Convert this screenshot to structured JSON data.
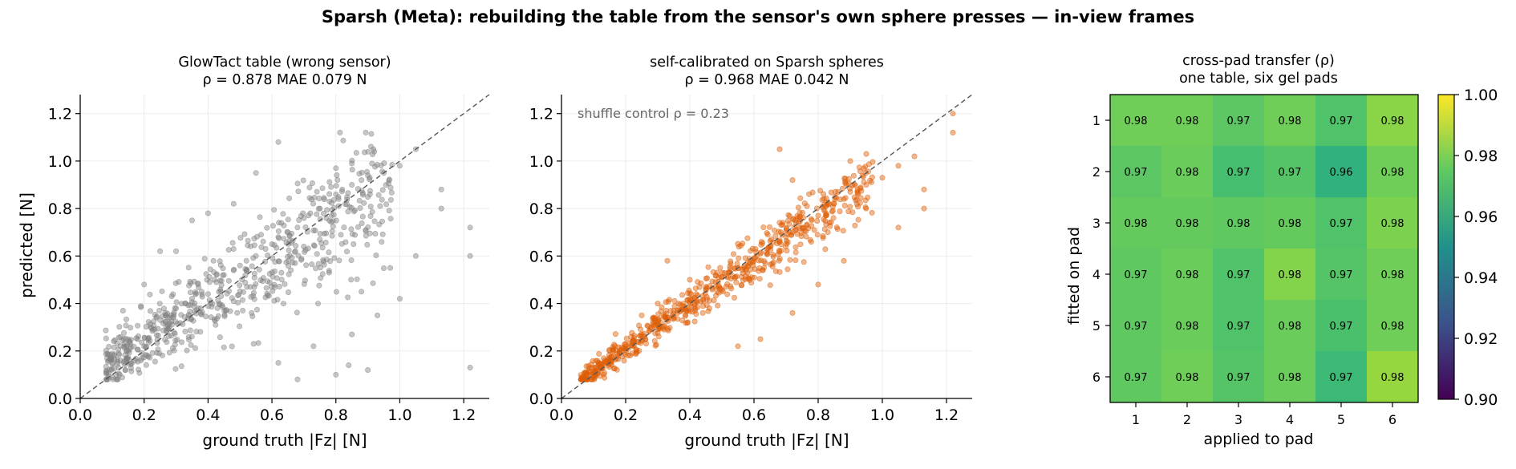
{
  "suptitle": "Sparsh (Meta): rebuilding the table from the sensor's own sphere presses — in-view frames",
  "colors": {
    "panel1_points": "#808080",
    "panel2_points": "#dd5e05",
    "diagonal": "#555555",
    "grid": "#ebebeb"
  },
  "chart_data": [
    {
      "type": "scatter",
      "title": "GlowTact table (wrong sensor)",
      "subtitle": "ρ = 0.878   MAE 0.079 N",
      "xlabel": "ground truth |Fz| [N]",
      "ylabel": "predicted [N]",
      "xlim": [
        0,
        1.28
      ],
      "ylim": [
        0,
        1.28
      ],
      "xticks": [
        "0.0",
        "0.2",
        "0.4",
        "0.6",
        "0.8",
        "1.0",
        "1.2"
      ],
      "yticks": [
        "0.0",
        "0.2",
        "0.4",
        "0.6",
        "0.8",
        "1.0",
        "1.2"
      ],
      "grid": true,
      "reference_line": "y = x",
      "stats": {
        "spearman_rho": 0.878,
        "mae_N": 0.079
      },
      "x_range": [
        0.08,
        1.23
      ],
      "points": [
        [
          0.12,
          0.13
        ],
        [
          0.15,
          0.2
        ],
        [
          0.18,
          0.25
        ],
        [
          0.2,
          0.22
        ],
        [
          0.22,
          0.3
        ],
        [
          0.25,
          0.33
        ],
        [
          0.28,
          0.34
        ],
        [
          0.3,
          0.38
        ],
        [
          0.33,
          0.4
        ],
        [
          0.35,
          0.42
        ],
        [
          0.38,
          0.45
        ],
        [
          0.4,
          0.44
        ],
        [
          0.42,
          0.5
        ],
        [
          0.45,
          0.52
        ],
        [
          0.48,
          0.54
        ],
        [
          0.5,
          0.56
        ],
        [
          0.52,
          0.58
        ],
        [
          0.55,
          0.6
        ],
        [
          0.58,
          0.63
        ],
        [
          0.6,
          0.65
        ],
        [
          0.62,
          0.68
        ],
        [
          0.65,
          0.7
        ],
        [
          0.68,
          0.72
        ],
        [
          0.7,
          0.76
        ],
        [
          0.72,
          0.78
        ],
        [
          0.75,
          0.8
        ],
        [
          0.78,
          0.83
        ],
        [
          0.8,
          0.86
        ],
        [
          0.82,
          0.88
        ],
        [
          0.85,
          0.9
        ],
        [
          0.88,
          0.92
        ],
        [
          0.9,
          0.94
        ],
        [
          0.95,
          0.95
        ],
        [
          1.0,
          0.98
        ],
        [
          1.05,
          1.05
        ],
        [
          0.62,
          1.08
        ],
        [
          0.55,
          0.95
        ],
        [
          0.8,
          0.97
        ],
        [
          0.92,
          1.04
        ],
        [
          0.85,
          0.99
        ],
        [
          0.62,
          0.15
        ],
        [
          0.68,
          0.08
        ],
        [
          0.8,
          0.1
        ],
        [
          0.84,
          0.14
        ],
        [
          0.9,
          0.12
        ],
        [
          0.73,
          0.22
        ],
        [
          0.85,
          0.27
        ],
        [
          0.93,
          0.35
        ],
        [
          1.0,
          0.42
        ],
        [
          0.88,
          0.45
        ],
        [
          0.97,
          0.55
        ],
        [
          1.05,
          0.6
        ],
        [
          1.13,
          0.88
        ],
        [
          1.13,
          0.8
        ],
        [
          1.22,
          0.72
        ],
        [
          1.22,
          0.6
        ],
        [
          1.22,
          0.13
        ],
        [
          0.4,
          0.78
        ],
        [
          0.48,
          0.82
        ],
        [
          0.35,
          0.75
        ],
        [
          0.3,
          0.62
        ],
        [
          0.25,
          0.62
        ],
        [
          0.2,
          0.48
        ]
      ]
    },
    {
      "type": "scatter",
      "title": "self-calibrated on Sparsh spheres",
      "subtitle": "ρ = 0.968   MAE 0.042 N",
      "annotation": "shuffle control ρ = 0.23",
      "xlabel": "ground truth |Fz| [N]",
      "ylabel": "",
      "xlim": [
        0,
        1.28
      ],
      "ylim": [
        0,
        1.28
      ],
      "xticks": [
        "0.0",
        "0.2",
        "0.4",
        "0.6",
        "0.8",
        "1.0",
        "1.2"
      ],
      "yticks": [
        "0.0",
        "0.2",
        "0.4",
        "0.6",
        "0.8",
        "1.0",
        "1.2"
      ],
      "grid": true,
      "reference_line": "y = x",
      "stats": {
        "spearman_rho": 0.968,
        "mae_N": 0.042,
        "shuffle_control_rho": 0.23
      },
      "x_range": [
        0.06,
        1.23
      ],
      "points": [
        [
          0.08,
          0.1
        ],
        [
          0.1,
          0.11
        ],
        [
          0.12,
          0.13
        ],
        [
          0.15,
          0.16
        ],
        [
          0.18,
          0.19
        ],
        [
          0.2,
          0.21
        ],
        [
          0.22,
          0.24
        ],
        [
          0.25,
          0.27
        ],
        [
          0.28,
          0.3
        ],
        [
          0.3,
          0.32
        ],
        [
          0.33,
          0.34
        ],
        [
          0.35,
          0.37
        ],
        [
          0.38,
          0.4
        ],
        [
          0.4,
          0.42
        ],
        [
          0.42,
          0.44
        ],
        [
          0.45,
          0.46
        ],
        [
          0.48,
          0.49
        ],
        [
          0.5,
          0.51
        ],
        [
          0.52,
          0.53
        ],
        [
          0.55,
          0.55
        ],
        [
          0.58,
          0.57
        ],
        [
          0.6,
          0.59
        ],
        [
          0.62,
          0.61
        ],
        [
          0.65,
          0.64
        ],
        [
          0.68,
          0.66
        ],
        [
          0.7,
          0.68
        ],
        [
          0.72,
          0.7
        ],
        [
          0.75,
          0.72
        ],
        [
          0.78,
          0.75
        ],
        [
          0.8,
          0.77
        ],
        [
          0.82,
          0.79
        ],
        [
          0.85,
          0.82
        ],
        [
          0.88,
          0.84
        ],
        [
          0.9,
          0.87
        ],
        [
          0.95,
          0.9
        ],
        [
          1.0,
          0.93
        ],
        [
          1.05,
          0.98
        ],
        [
          1.1,
          1.02
        ],
        [
          1.22,
          1.12
        ],
        [
          1.22,
          1.2
        ],
        [
          0.68,
          1.05
        ],
        [
          0.72,
          0.92
        ],
        [
          0.9,
          1.0
        ],
        [
          0.95,
          1.03
        ],
        [
          1.13,
          0.88
        ],
        [
          1.13,
          0.8
        ],
        [
          1.05,
          0.72
        ],
        [
          0.88,
          0.58
        ],
        [
          0.8,
          0.48
        ],
        [
          0.72,
          0.36
        ],
        [
          0.62,
          0.25
        ],
        [
          0.55,
          0.22
        ],
        [
          0.4,
          0.5
        ],
        [
          0.3,
          0.4
        ],
        [
          0.33,
          0.58
        ],
        [
          0.25,
          0.35
        ]
      ]
    },
    {
      "type": "heatmap",
      "title": "cross-pad transfer (ρ)",
      "subtitle": "one table, six gel pads",
      "xlabel": "applied to pad",
      "ylabel": "fitted on pad",
      "x_categories": [
        "1",
        "2",
        "3",
        "4",
        "5",
        "6"
      ],
      "y_categories": [
        "1",
        "2",
        "3",
        "4",
        "5",
        "6"
      ],
      "colormap": "viridis",
      "vmin": 0.9,
      "vmax": 1.0,
      "colorbar_ticks": [
        "0.90",
        "0.92",
        "0.94",
        "0.96",
        "0.98",
        "1.00"
      ],
      "values": [
        [
          0.978,
          0.978,
          0.974,
          0.978,
          0.972,
          0.982
        ],
        [
          0.974,
          0.977,
          0.97,
          0.973,
          0.964,
          0.978
        ],
        [
          0.976,
          0.976,
          0.975,
          0.976,
          0.972,
          0.98
        ],
        [
          0.975,
          0.977,
          0.972,
          0.981,
          0.973,
          0.978
        ],
        [
          0.975,
          0.977,
          0.972,
          0.977,
          0.971,
          0.978
        ],
        [
          0.975,
          0.978,
          0.973,
          0.977,
          0.968,
          0.984
        ]
      ],
      "labels": [
        [
          "0.98",
          "0.98",
          "0.97",
          "0.98",
          "0.97",
          "0.98"
        ],
        [
          "0.97",
          "0.98",
          "0.97",
          "0.97",
          "0.96",
          "0.98"
        ],
        [
          "0.98",
          "0.98",
          "0.98",
          "0.98",
          "0.97",
          "0.98"
        ],
        [
          "0.97",
          "0.98",
          "0.97",
          "0.98",
          "0.97",
          "0.98"
        ],
        [
          "0.97",
          "0.98",
          "0.97",
          "0.98",
          "0.97",
          "0.98"
        ],
        [
          "0.97",
          "0.98",
          "0.97",
          "0.98",
          "0.97",
          "0.98"
        ]
      ]
    }
  ]
}
